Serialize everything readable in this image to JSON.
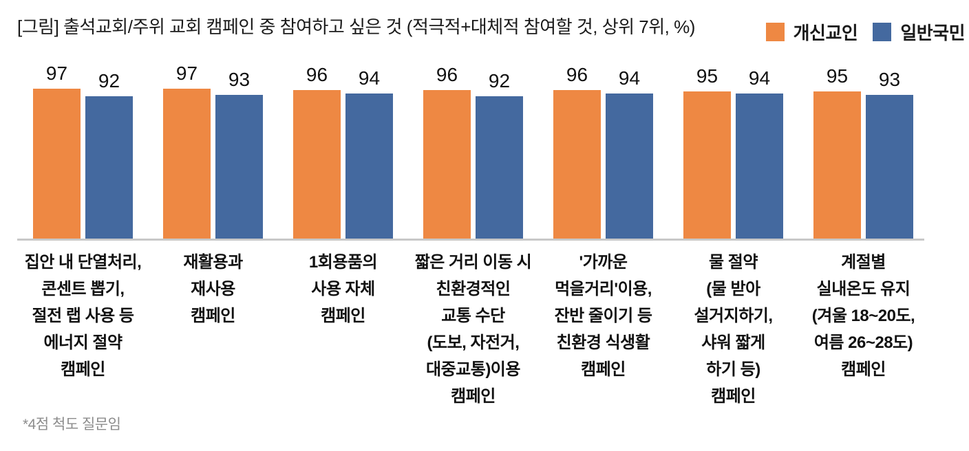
{
  "title": "[그림] 출석교회/주위 교회 캠페인 중 참여하고 싶은 것 (적극적+대체적 참여할 것, 상위 7위, %)",
  "footnote": "*4점 척도 질문임",
  "legend": {
    "items": [
      {
        "label": "개신교인",
        "color": "#EE8843"
      },
      {
        "label": "일반국민",
        "color": "#44699F"
      }
    ]
  },
  "colors": {
    "protestant_orange": "#EE8843",
    "public_blue": "#44699F",
    "axis_gray": "#C8C8C8",
    "footnote_gray": "#8C8C8C"
  },
  "chart_data": {
    "type": "bar",
    "title": "[그림] 출석교회/주위 교회 캠페인 중 참여하고 싶은 것 (적극적+대체적 참여할 것, 상위 7위, %)",
    "unit": "%",
    "ylim": [
      0,
      100
    ],
    "grid": false,
    "legend_position": "top-right",
    "value_labels": true,
    "categories": [
      "집안 내 단열처리,\n콘센트 뽑기,\n절전 랩 사용 등\n에너지 절약\n캠페인",
      "재활용과\n재사용\n캠페인",
      "1회용품의\n사용 자체\n캠페인",
      "짧은 거리 이동 시\n친환경적인\n교통 수단\n(도보, 자전거,\n대중교통)이용\n캠페인",
      "'가까운\n먹을거리'이용,\n잔반 줄이기 등\n친환경 식생활\n캠페인",
      "물 절약\n(물 받아\n설거지하기,\n샤워 짧게\n하기 등)\n캠페인",
      "계절별\n실내온도 유지\n(겨울 18~20도,\n여름 26~28도)\n캠페인"
    ],
    "series": [
      {
        "name": "개신교인",
        "color": "#EE8843",
        "values": [
          97,
          97,
          96,
          96,
          96,
          95,
          95
        ]
      },
      {
        "name": "일반국민",
        "color": "#44699F",
        "values": [
          92,
          93,
          94,
          92,
          94,
          94,
          93
        ]
      }
    ],
    "footnote": "*4점 척도 질문임"
  }
}
